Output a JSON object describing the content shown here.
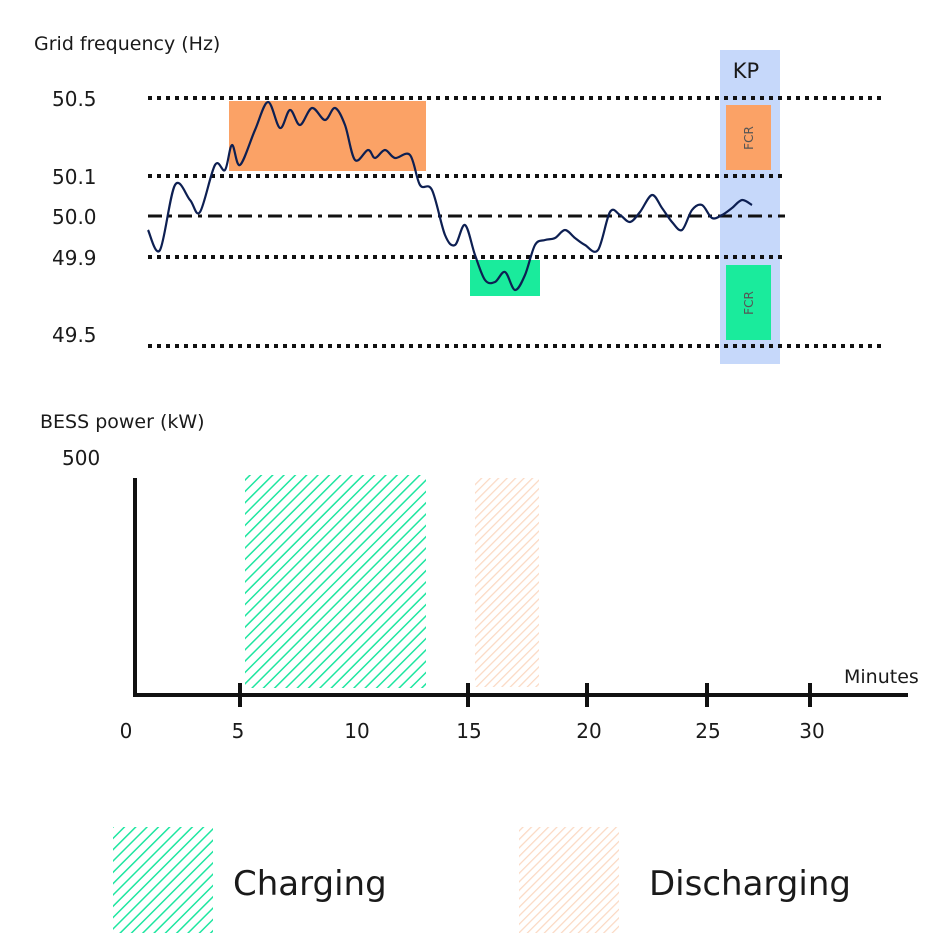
{
  "frequency_panel": {
    "title": "Grid frequency (Hz)",
    "yticks": [
      "50.5",
      "50.1",
      "50.0",
      "49.9",
      "49.5"
    ],
    "kp_label": "KP",
    "fcr_labels": [
      "FCR",
      "FCR"
    ]
  },
  "power_panel": {
    "title": "BESS power (kW)",
    "ymax_label": "500",
    "x_label": "Minutes",
    "xticks": [
      "0",
      "5",
      "10",
      "15",
      "20",
      "25",
      "30"
    ]
  },
  "legend": [
    "Charging",
    "Discharging"
  ]
}
